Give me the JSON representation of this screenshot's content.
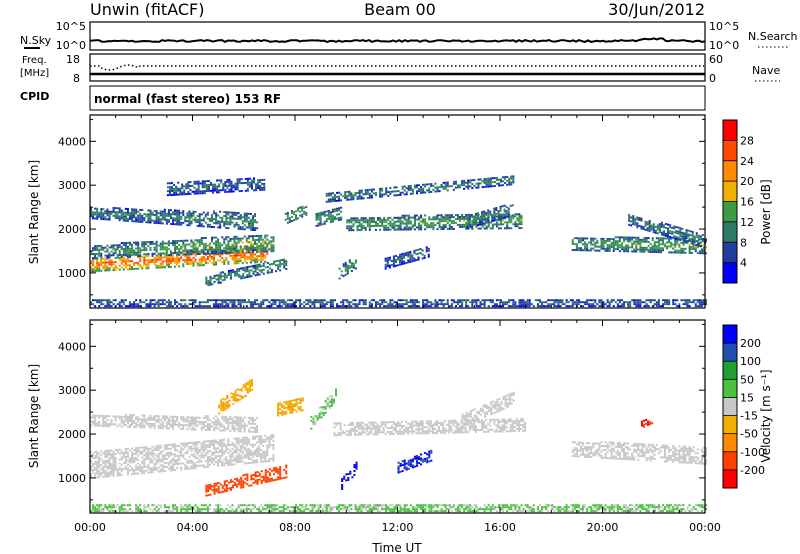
{
  "header": {
    "station": "Unwin (fitACF)",
    "beam": "Beam 00",
    "date": "30/Jun/2012"
  },
  "noise_panel": {
    "left_label": "N.Sky",
    "right_label": "N.Search",
    "left_ticks": [
      "10^5",
      "10^0"
    ],
    "right_ticks": [
      "10^5",
      "10^0"
    ]
  },
  "freq_panel": {
    "left_label_1": "Freq.",
    "left_label_2": "[MHz]",
    "right_label": "Nave",
    "left_ticks": [
      "18",
      "8"
    ],
    "right_ticks": [
      "60",
      "0"
    ]
  },
  "cpid": {
    "label": "CPID",
    "text": "normal (fast stereo) 153 RF"
  },
  "colors": {
    "power": [
      "#0000ff",
      "#1f3fa0",
      "#2f7a66",
      "#3c9c46",
      "#f2b000",
      "#ff8a00",
      "#ff4800",
      "#ff0000"
    ],
    "velocity": [
      "#ff0000",
      "#ff4000",
      "#ff8a00",
      "#f0b000",
      "#c8c8c8",
      "#4cc040",
      "#1fa030",
      "#1f4fb0",
      "#0000ff"
    ]
  },
  "chart_data": [
    {
      "type": "heatmap",
      "name": "power",
      "xlabel": "",
      "ylabel": "Slant Range [km]",
      "ylim": [
        200,
        4600
      ],
      "xlim": [
        0,
        24
      ],
      "yticks": [
        1000,
        2000,
        3000,
        4000
      ],
      "colorbar_label": "Power [dB]",
      "colorbar_ticks": [
        4,
        8,
        12,
        16,
        20,
        24,
        28
      ],
      "clim": [
        0,
        32
      ],
      "regions": [
        {
          "x": [
            0.0,
            6.9
          ],
          "y0": [
            1150,
            1200
          ],
          "y1": [
            1180,
            1650
          ],
          "w": [
            300,
            380
          ],
          "v": [
            24,
            24
          ]
        },
        {
          "x": [
            0.0,
            7.2
          ],
          "y0": [
            1450,
            1400
          ],
          "y1": [
            1480,
            1950
          ],
          "w": [
            300,
            400
          ],
          "v": [
            11,
            14
          ]
        },
        {
          "x": [
            0.0,
            6.5
          ],
          "y0": [
            2400,
            2000
          ],
          "y1": [
            2300,
            2300
          ],
          "w": [
            250,
            400
          ],
          "v": [
            9,
            11
          ]
        },
        {
          "x": [
            3.0,
            6.8
          ],
          "y0": [
            2700,
            2850
          ],
          "y1": [
            3100,
            3200
          ],
          "w": [
            300,
            300
          ],
          "v": [
            8,
            8
          ]
        },
        {
          "x": [
            4.5,
            7.7
          ],
          "y0": [
            700,
            800
          ],
          "y1": [
            900,
            1600
          ],
          "w": [
            220,
            250
          ],
          "v": [
            11,
            11
          ]
        },
        {
          "x": [
            7.6,
            8.4
          ],
          "y0": [
            2150,
            2250
          ],
          "y1": [
            2300,
            2600
          ],
          "w": [
            250,
            250
          ],
          "v": [
            14,
            14
          ]
        },
        {
          "x": [
            8.8,
            9.8
          ],
          "y0": [
            2300,
            2400
          ],
          "y1": [
            2100,
            2300
          ],
          "w": [
            300,
            300
          ],
          "v": [
            12,
            12
          ]
        },
        {
          "x": [
            10.0,
            16.8
          ],
          "y0": [
            2100,
            2150
          ],
          "y1": [
            2100,
            2200
          ],
          "w": [
            300,
            350
          ],
          "v": [
            13,
            13
          ]
        },
        {
          "x": [
            14.7,
            16.5
          ],
          "y0": [
            2300,
            2400
          ],
          "y1": [
            2000,
            2500
          ],
          "w": [
            300,
            300
          ],
          "v": [
            10,
            10
          ]
        },
        {
          "x": [
            9.7,
            10.4
          ],
          "y0": [
            900,
            1050
          ],
          "y1": [
            1100,
            1400
          ],
          "w": [
            300,
            250
          ],
          "v": [
            12,
            12
          ]
        },
        {
          "x": [
            11.5,
            13.2
          ],
          "y0": [
            1300,
            1450
          ],
          "y1": [
            1100,
            1500
          ],
          "w": [
            250,
            250
          ],
          "v": [
            8,
            8
          ]
        },
        {
          "x": [
            9.2,
            16.5
          ],
          "y0": [
            2700,
            3100
          ],
          "y1": [
            2700,
            3100
          ],
          "w": [
            200,
            200
          ],
          "v": [
            10,
            10
          ]
        },
        {
          "x": [
            18.8,
            24.0
          ],
          "y0": [
            1900,
            1600
          ],
          "y1": [
            1400,
            1600
          ],
          "w": [
            300,
            350
          ],
          "v": [
            12,
            14
          ]
        },
        {
          "x": [
            21.0,
            24.0
          ],
          "y0": [
            2600,
            1900
          ],
          "y1": [
            1800,
            1500
          ],
          "w": [
            250,
            300
          ],
          "v": [
            9,
            10
          ]
        },
        {
          "x": [
            0.0,
            24.0
          ],
          "y0": [
            300,
            300
          ],
          "y1": [
            300,
            300
          ],
          "w": [
            160,
            160
          ],
          "v": [
            8,
            8
          ]
        }
      ]
    },
    {
      "type": "heatmap",
      "name": "velocity",
      "xlabel": "Time UT",
      "ylabel": "Slant Range [km]",
      "ylim": [
        200,
        4600
      ],
      "xlim": [
        0,
        24
      ],
      "yticks": [
        1000,
        2000,
        3000,
        4000
      ],
      "xticks": [
        "00:00",
        "04:00",
        "08:00",
        "12:00",
        "16:00",
        "20:00",
        "00:00"
      ],
      "colorbar_label": "Velocity [m s⁻¹]",
      "colorbar_ticks": [
        -200,
        -100,
        -50,
        -15,
        15,
        50,
        100,
        200
      ],
      "clim": [
        -250,
        250
      ],
      "regions": [
        {
          "x": [
            0.0,
            7.2
          ],
          "y0": [
            1200,
            1500
          ],
          "y1": [
            1350,
            1850
          ],
          "w": [
            600,
            600
          ],
          "v": [
            0,
            0
          ]
        },
        {
          "x": [
            0.0,
            6.5
          ],
          "y0": [
            2300,
            2100
          ],
          "y1": [
            2300,
            2300
          ],
          "w": [
            250,
            350
          ],
          "v": [
            0,
            0
          ]
        },
        {
          "x": [
            5.0,
            6.3
          ],
          "y0": [
            2900,
            3100
          ],
          "y1": [
            2300,
            3100
          ],
          "w": [
            300,
            300
          ],
          "v": [
            -40,
            -40
          ]
        },
        {
          "x": [
            4.5,
            7.7
          ],
          "y0": [
            600,
            700
          ],
          "y1": [
            800,
            1600
          ],
          "w": [
            250,
            300
          ],
          "v": [
            -180,
            -180
          ]
        },
        {
          "x": [
            7.3,
            8.3
          ],
          "y0": [
            2400,
            2450
          ],
          "y1": [
            2700,
            2900
          ],
          "w": [
            300,
            300
          ],
          "v": [
            -40,
            -40
          ]
        },
        {
          "x": [
            8.6,
            9.6
          ],
          "y0": [
            2300,
            2900
          ],
          "y1": [
            2200,
            2900
          ],
          "w": [
            300,
            300
          ],
          "v": [
            20,
            20
          ]
        },
        {
          "x": [
            9.5,
            17.0
          ],
          "y0": [
            2100,
            2200
          ],
          "y1": [
            2100,
            2200
          ],
          "w": [
            300,
            300
          ],
          "v": [
            0,
            0
          ]
        },
        {
          "x": [
            9.8,
            10.4
          ],
          "y0": [
            800,
            1200
          ],
          "y1": [
            900,
            1300
          ],
          "w": [
            250,
            250
          ],
          "v": [
            220,
            220
          ]
        },
        {
          "x": [
            12.0,
            13.3
          ],
          "y0": [
            1300,
            1500
          ],
          "y1": [
            1150,
            1500
          ],
          "w": [
            250,
            250
          ],
          "v": [
            200,
            200
          ]
        },
        {
          "x": [
            14.5,
            16.5
          ],
          "y0": [
            2500,
            2700
          ],
          "y1": [
            2100,
            2900
          ],
          "w": [
            300,
            300
          ],
          "v": [
            0,
            0
          ]
        },
        {
          "x": [
            18.8,
            24.0
          ],
          "y0": [
            1800,
            1500
          ],
          "y1": [
            1500,
            1500
          ],
          "w": [
            350,
            400
          ],
          "v": [
            0,
            0
          ]
        },
        {
          "x": [
            21.5,
            21.9
          ],
          "y0": [
            2200,
            2300
          ],
          "y1": [
            2200,
            2300
          ],
          "w": [
            150,
            150
          ],
          "v": [
            -200,
            -200
          ]
        },
        {
          "x": [
            0.0,
            24.0
          ],
          "y0": [
            300,
            300
          ],
          "y1": [
            300,
            300
          ],
          "w": [
            160,
            160
          ],
          "v": [
            20,
            20
          ]
        }
      ]
    }
  ]
}
